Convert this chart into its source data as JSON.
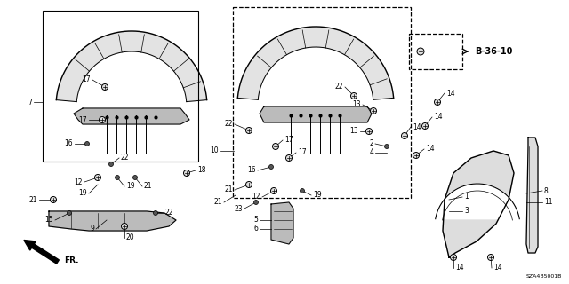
{
  "background_color": "#ffffff",
  "diagram_code": "SZA4B5001B",
  "ref_label": "B-36-10",
  "fr_label": "FR.",
  "line_color": "#000000",
  "text_color": "#000000",
  "figsize": [
    6.4,
    3.2
  ],
  "dpi": 100
}
